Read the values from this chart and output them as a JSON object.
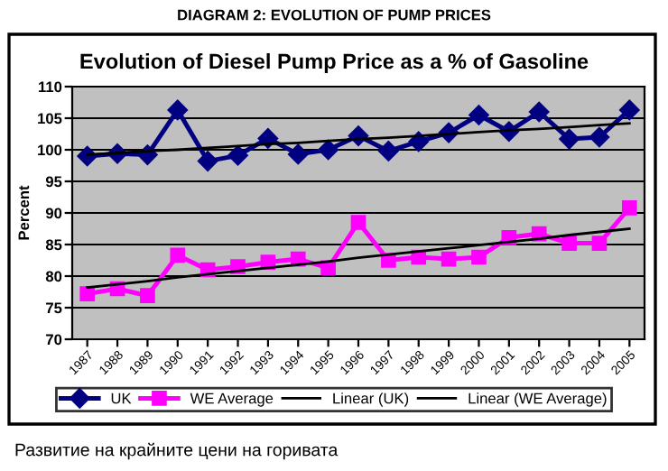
{
  "chart_data": {
    "type": "line",
    "title": "DIAGRAM 2: EVOLUTION OF PUMP PRICES",
    "subtitle": "Evolution of Diesel Pump Price as a % of Gasoline",
    "ylabel": "Percent",
    "categories": [
      "1987",
      "1988",
      "1989",
      "1990",
      "1991",
      "1992",
      "1993",
      "1994",
      "1995",
      "1996",
      "1997",
      "1998",
      "1999",
      "2000",
      "2001",
      "2002",
      "2003",
      "2004",
      "2005"
    ],
    "series": [
      {
        "name": "UK",
        "color": "#000080",
        "marker": "diamond",
        "values": [
          99,
          99.4,
          99.2,
          106.3,
          98.2,
          99.1,
          101.8,
          99.3,
          100,
          102.2,
          99.8,
          101.3,
          102.7,
          105.5,
          102.9,
          106,
          101.7,
          102,
          106.3
        ]
      },
      {
        "name": "WE Average",
        "color": "#ff00ff",
        "marker": "square",
        "values": [
          77.2,
          78,
          76.9,
          83.3,
          81,
          81.5,
          82.2,
          82.7,
          81.3,
          88.5,
          82.5,
          83,
          82.7,
          83,
          86.1,
          86.7,
          85.2,
          85.2,
          90.8
        ]
      },
      {
        "name": "Linear (UK)",
        "color": "#000000",
        "marker": "none",
        "values": [
          99.2,
          99.5,
          99.8,
          100.0,
          100.3,
          100.6,
          100.9,
          101.1,
          101.4,
          101.7,
          101.9,
          102.2,
          102.5,
          102.8,
          103.1,
          103.3,
          103.6,
          103.9,
          104.2
        ]
      },
      {
        "name": "Linear (WE Average)",
        "color": "#000000",
        "marker": "none",
        "values": [
          78.2,
          78.7,
          79.2,
          79.8,
          80.3,
          80.8,
          81.3,
          81.8,
          82.3,
          82.9,
          83.4,
          83.9,
          84.4,
          84.9,
          85.4,
          85.9,
          86.5,
          87.0,
          87.5
        ]
      }
    ],
    "ylim": [
      70,
      110
    ],
    "yticks": [
      70,
      75,
      80,
      85,
      90,
      95,
      100,
      105,
      110
    ],
    "grid": "y",
    "legend": "bottom",
    "annotations": [
      "Развитие на крайните цени на горивата"
    ]
  }
}
